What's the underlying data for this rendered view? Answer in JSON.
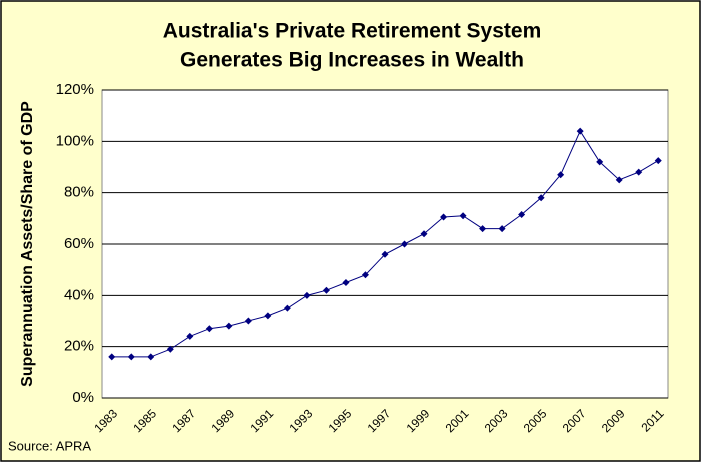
{
  "chart_data": {
    "type": "line",
    "title": [
      "Australia's Private Retirement System",
      "Generates Big Increases in Wealth"
    ],
    "y_label": "Superannuation Assets/Share of GDP",
    "source": "Source: APRA",
    "categories": [
      "1983",
      null,
      "1985",
      null,
      "1987",
      null,
      "1989",
      null,
      "1991",
      null,
      "1993",
      null,
      "1995",
      null,
      "1997",
      null,
      "1999",
      null,
      "2001",
      null,
      "2003",
      null,
      "2005",
      null,
      "2007",
      null,
      "2009",
      null,
      "2011"
    ],
    "series": [
      {
        "name": "Superannuation Assets/Share of GDP",
        "color": "#000080",
        "values": [
          16,
          16,
          16,
          19,
          24,
          27,
          28,
          30,
          32,
          35,
          40,
          42,
          45,
          48,
          56,
          60,
          64,
          70.5,
          71,
          66,
          66,
          71.5,
          78,
          87,
          104,
          92,
          85,
          88,
          92.5
        ]
      }
    ],
    "ylim": [
      0,
      120
    ],
    "yticks": [
      {
        "value": 0,
        "label": "0%"
      },
      {
        "value": 20,
        "label": "20%"
      },
      {
        "value": 40,
        "label": "40%"
      },
      {
        "value": 60,
        "label": "60%"
      },
      {
        "value": 80,
        "label": "80%"
      },
      {
        "value": 100,
        "label": "100%"
      },
      {
        "value": 120,
        "label": "120%"
      }
    ],
    "grid": true
  }
}
